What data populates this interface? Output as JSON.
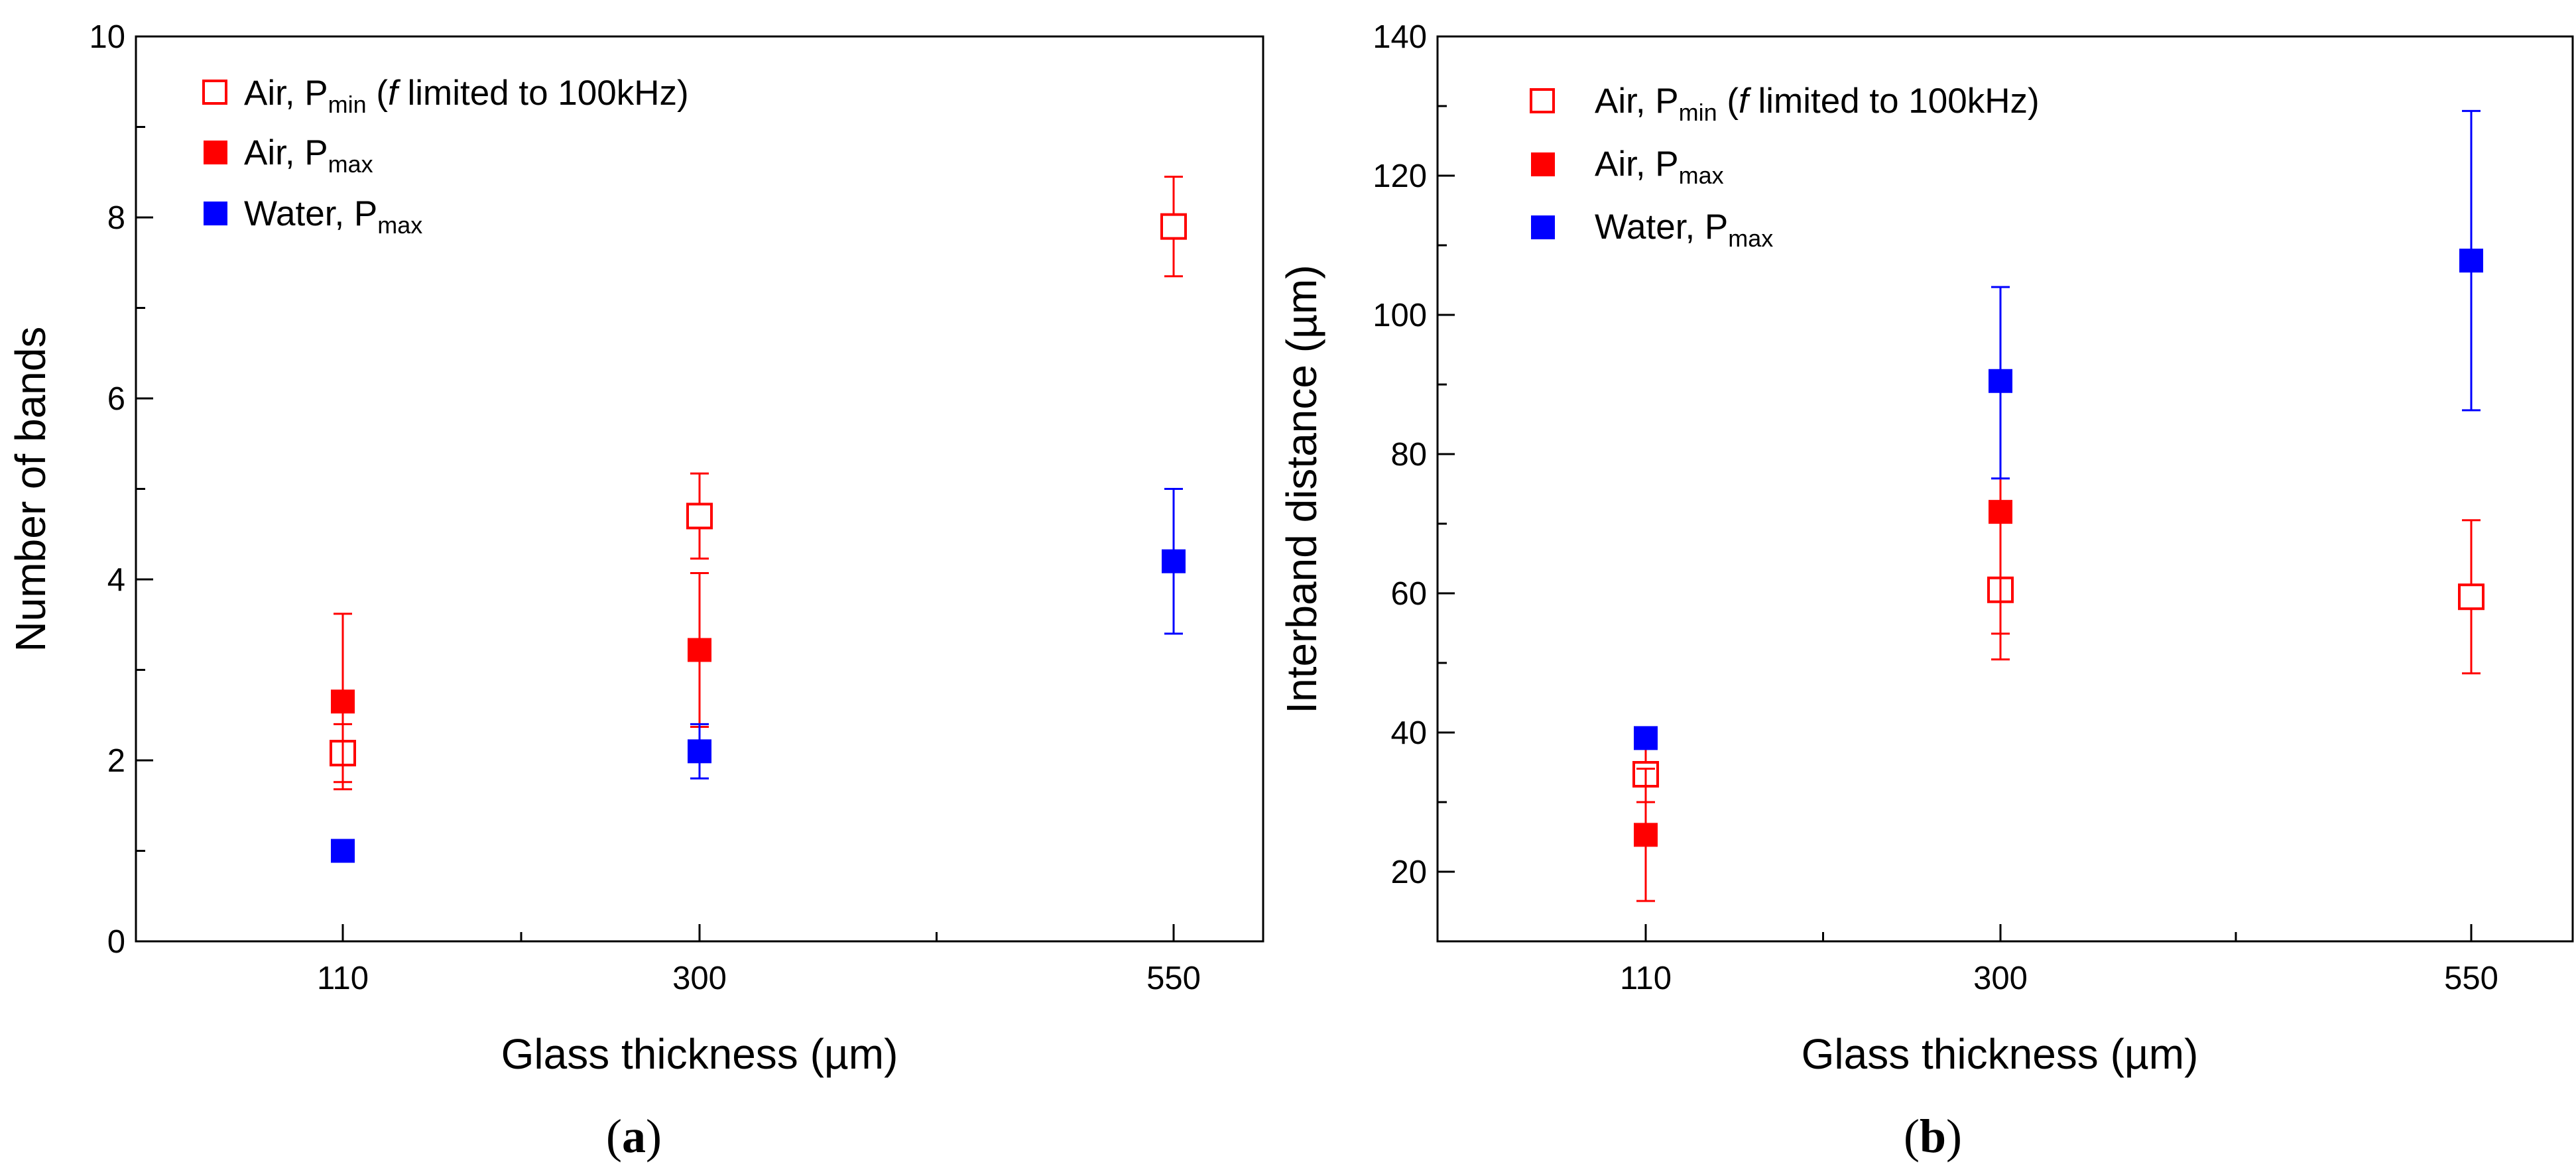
{
  "colors": {
    "air": "#ff0000",
    "water": "#0000ff",
    "axis": "#000000"
  },
  "legend_common": {
    "air_label": "Air, P",
    "water_label": "Water, P",
    "min_sub": "min",
    "max_sub": "max",
    "min_note_open": " (",
    "min_note_f": "f",
    "min_note_rest": " limited to 100kHz)"
  },
  "chart_data": [
    {
      "type": "scatter",
      "caption": {
        "open": "(",
        "letter": "a",
        "close": ")"
      },
      "xlabel": "Glass thickness (µm)",
      "ylabel": "Number of bands",
      "x_categories": [
        "110",
        "300",
        "550"
      ],
      "ylim": [
        0,
        10
      ],
      "y_ticks": [
        0,
        2,
        4,
        6,
        8,
        10
      ],
      "y_minor_step": 1,
      "legend_position": "top-left",
      "series": [
        {
          "name": "Air, Pmin (f limited to 100kHz)",
          "marker": "open-square",
          "color": "#ff0000",
          "values": [
            2.08,
            4.7,
            7.9
          ],
          "err_low": [
            0.32,
            0.47,
            0.55
          ],
          "err_high": [
            0.32,
            0.47,
            0.55
          ]
        },
        {
          "name": "Air, Pmax",
          "marker": "filled-square",
          "color": "#ff0000",
          "values": [
            2.65,
            3.22,
            null
          ],
          "err_low": [
            0.97,
            0.85,
            null
          ],
          "err_high": [
            0.97,
            0.85,
            null
          ]
        },
        {
          "name": "Water, Pmax",
          "marker": "filled-square",
          "color": "#0000ff",
          "values": [
            1.0,
            2.1,
            4.2
          ],
          "err_low": [
            0,
            0.3,
            0.8
          ],
          "err_high": [
            0,
            0.3,
            0.8
          ]
        }
      ]
    },
    {
      "type": "scatter",
      "caption": {
        "open": "(",
        "letter": "b",
        "close": ")"
      },
      "xlabel": "Glass thickness (µm)",
      "ylabel": "Interband distance (µm)",
      "x_categories": [
        "110",
        "300",
        "550"
      ],
      "ylim": [
        10,
        140
      ],
      "y_ticks": [
        20,
        40,
        60,
        80,
        100,
        120,
        140
      ],
      "y_minor_step": 10,
      "legend_position": "top-left",
      "series": [
        {
          "name": "Air, Pmin (f limited to 100kHz)",
          "marker": "open-square",
          "color": "#ff0000",
          "values": [
            34,
            60.5,
            59.5
          ],
          "err_low": [
            4,
            10,
            11
          ],
          "err_high": [
            4,
            10,
            11
          ]
        },
        {
          "name": "Air, Pmax",
          "marker": "filled-square",
          "color": "#ff0000",
          "values": [
            25.3,
            71.7,
            null
          ],
          "err_low": [
            9.5,
            17.5,
            null
          ],
          "err_high": [
            9.5,
            17.5,
            null
          ]
        },
        {
          "name": "Water, Pmax",
          "marker": "filled-square",
          "color": "#0000ff",
          "values": [
            39.2,
            90.5,
            107.8
          ],
          "err_low": [
            0,
            14,
            21.5
          ],
          "err_high": [
            0,
            13.5,
            21.5
          ]
        }
      ]
    }
  ]
}
